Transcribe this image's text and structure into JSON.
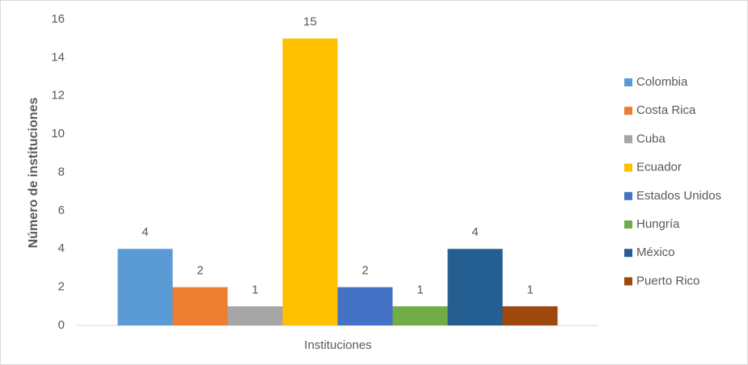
{
  "chart_data": {
    "type": "bar",
    "categories": [
      "Instituciones"
    ],
    "x_label": "Instituciones",
    "y_label": "Número de instituciones",
    "series": [
      {
        "name": "Colombia",
        "color": "#5b9bd5",
        "values": [
          4
        ]
      },
      {
        "name": "Costa Rica",
        "color": "#ed7d31",
        "values": [
          2
        ]
      },
      {
        "name": "Cuba",
        "color": "#a5a5a5",
        "values": [
          1
        ]
      },
      {
        "name": "Ecuador",
        "color": "#ffc000",
        "values": [
          15
        ]
      },
      {
        "name": "Estados Unidos",
        "color": "#4472c4",
        "values": [
          2
        ]
      },
      {
        "name": "Hungría",
        "color": "#70ad47",
        "values": [
          1
        ]
      },
      {
        "name": "México",
        "color": "#255e91",
        "values": [
          4
        ]
      },
      {
        "name": "Puerto Rico",
        "color": "#9e480e",
        "values": [
          1
        ]
      }
    ],
    "ylim": [
      0,
      16
    ],
    "yticks": [
      0,
      2,
      4,
      6,
      8,
      10,
      12,
      14,
      16
    ],
    "legend": "right"
  }
}
